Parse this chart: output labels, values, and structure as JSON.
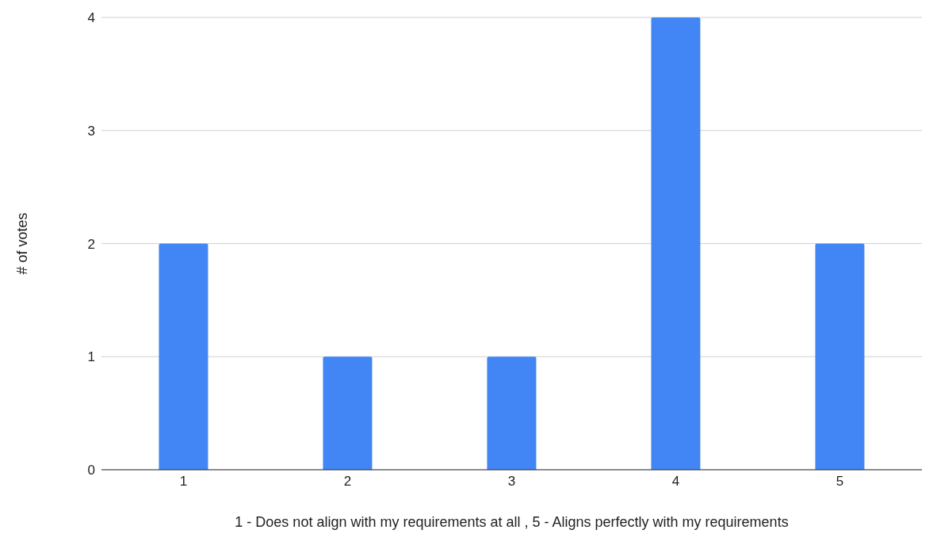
{
  "chart_data": {
    "type": "bar",
    "xlabel": "1 - Does not align with my requirements at all , 5 - Aligns perfectly with my requirements",
    "ylabel": "# of votes",
    "categories": [
      "1",
      "2",
      "3",
      "4",
      "5"
    ],
    "values": [
      2,
      1,
      1,
      4,
      2
    ],
    "color": "#4285f4",
    "ylim": [
      0,
      4
    ],
    "yticks": [
      0,
      1,
      2,
      3,
      4
    ],
    "grid": "y"
  }
}
